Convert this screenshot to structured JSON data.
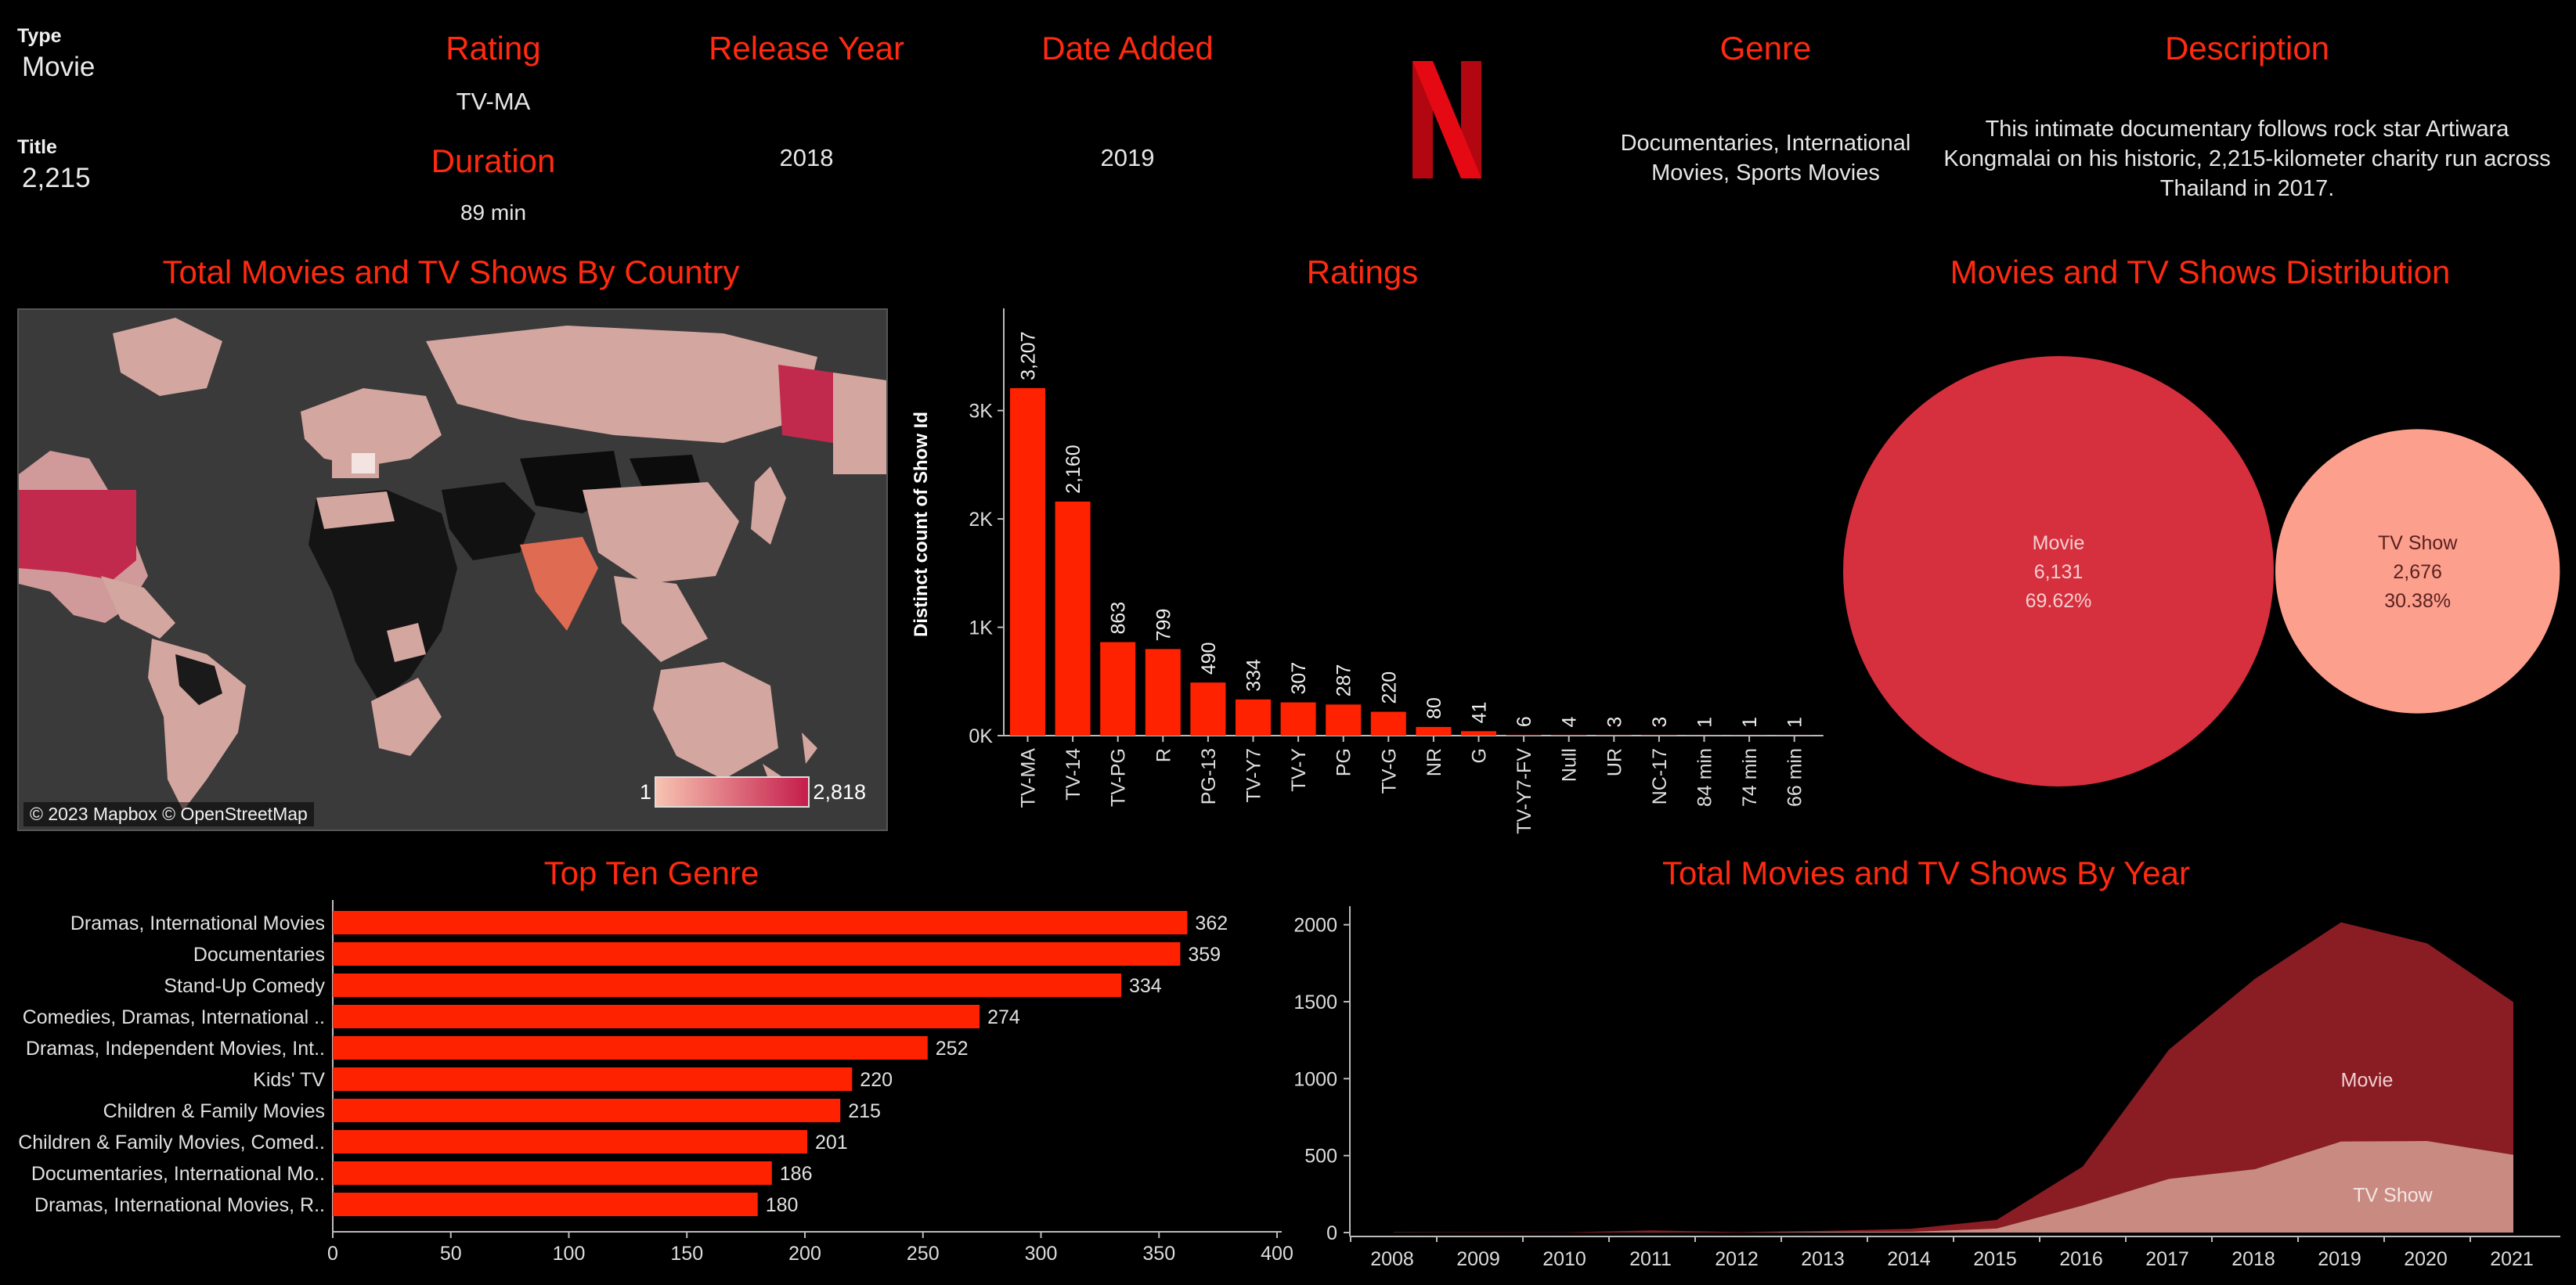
{
  "kpis": {
    "type_label": "Type",
    "type_value": "Movie",
    "title_label": "Title",
    "title_value": "2,215",
    "rating_label": "Rating",
    "rating_value": "TV-MA",
    "duration_label": "Duration",
    "duration_value": "89 min",
    "release_year_label": "Release Year",
    "release_year_value": "2018",
    "date_added_label": "Date Added",
    "date_added_value": "2019",
    "genre_label": "Genre",
    "genre_value": "Documentaries, International Movies, Sports Movies",
    "description_label": "Description",
    "description_value": "This intimate documentary follows rock star Artiwara Kongmalai on his historic, 2,215-kilometer charity run across Thailand in 2017."
  },
  "logo": {
    "icon": "netflix-n-logo",
    "color": "#e50914"
  },
  "map": {
    "title": "Total Movies and TV Shows By Country",
    "attribution": "© 2023 Mapbox © OpenStreetMap",
    "legend_min": "1",
    "legend_max": "2,818",
    "colors": {
      "low": "#f7c3b1",
      "high": "#c51d4b",
      "no_data": "#111111",
      "land": "#d4a6a0",
      "ocean": "#3a3a3a"
    }
  },
  "chart_data": [
    {
      "type": "bar",
      "title": "Ratings",
      "ylabel": "Distinct count of Show Id",
      "xlabel": "",
      "ylim": [
        0,
        3900
      ],
      "yticks": [
        "0K",
        "1K",
        "2K",
        "3K"
      ],
      "categories": [
        "TV-MA",
        "TV-14",
        "TV-PG",
        "R",
        "PG-13",
        "TV-Y7",
        "TV-Y",
        "PG",
        "TV-G",
        "NR",
        "G",
        "TV-Y7-FV",
        "Null",
        "UR",
        "NC-17",
        "84 min",
        "74 min",
        "66 min"
      ],
      "values": [
        3207,
        2160,
        863,
        799,
        490,
        334,
        307,
        287,
        220,
        80,
        41,
        6,
        4,
        3,
        3,
        1,
        1,
        1
      ],
      "labels": [
        "3,207",
        "2,160",
        "863",
        "799",
        "490",
        "334",
        "307",
        "287",
        "220",
        "80",
        "41",
        "6",
        "4",
        "3",
        "3",
        "1",
        "1",
        "1"
      ],
      "color": "#ff2200"
    },
    {
      "type": "bubble",
      "title": "Movies and TV Shows Distribution",
      "items": [
        {
          "name": "Movie",
          "count": "6,131",
          "pct": "69.62%",
          "value": 6131,
          "color": "#d62f3e"
        },
        {
          "name": "TV Show",
          "count": "2,676",
          "pct": "30.38%",
          "value": 2676,
          "color": "#fca08d"
        }
      ]
    },
    {
      "type": "bar",
      "orientation": "horizontal",
      "title": "Top Ten Genre",
      "xlim": [
        0,
        400
      ],
      "xticks": [
        "0",
        "50",
        "100",
        "150",
        "200",
        "250",
        "300",
        "350",
        "400"
      ],
      "categories": [
        "Dramas, International Movies",
        "Documentaries",
        "Stand-Up Comedy",
        "Comedies, Dramas, International ..",
        "Dramas, Independent Movies, Int..",
        "Kids' TV",
        "Children & Family Movies",
        "Children & Family Movies, Comed..",
        "Documentaries, International Mo..",
        "Dramas, International Movies, R.."
      ],
      "values": [
        362,
        359,
        334,
        274,
        252,
        220,
        215,
        201,
        186,
        180
      ],
      "color": "#ff2200"
    },
    {
      "type": "area",
      "title": "Total Movies and TV Shows By Year",
      "x": [
        "2008",
        "2009",
        "2010",
        "2011",
        "2012",
        "2013",
        "2014",
        "2015",
        "2016",
        "2017",
        "2018",
        "2019",
        "2020",
        "2021"
      ],
      "ylim": [
        0,
        2100
      ],
      "yticks": [
        "0",
        "500",
        "1000",
        "1500",
        "2000"
      ],
      "series": [
        {
          "name": "Movie",
          "values": [
            1,
            2,
            1,
            13,
            3,
            6,
            19,
            56,
            253,
            839,
            1237,
            1424,
            1284,
            993
          ],
          "color": "#8a1c24"
        },
        {
          "name": "TV Show",
          "values": [
            1,
            0,
            0,
            1,
            0,
            5,
            5,
            26,
            176,
            349,
            412,
            592,
            595,
            505
          ],
          "color": "#c98a82"
        }
      ],
      "totals": [
        2,
        2,
        1,
        14,
        3,
        11,
        24,
        82,
        429,
        1188,
        1649,
        2016,
        1879,
        1498
      ]
    }
  ]
}
